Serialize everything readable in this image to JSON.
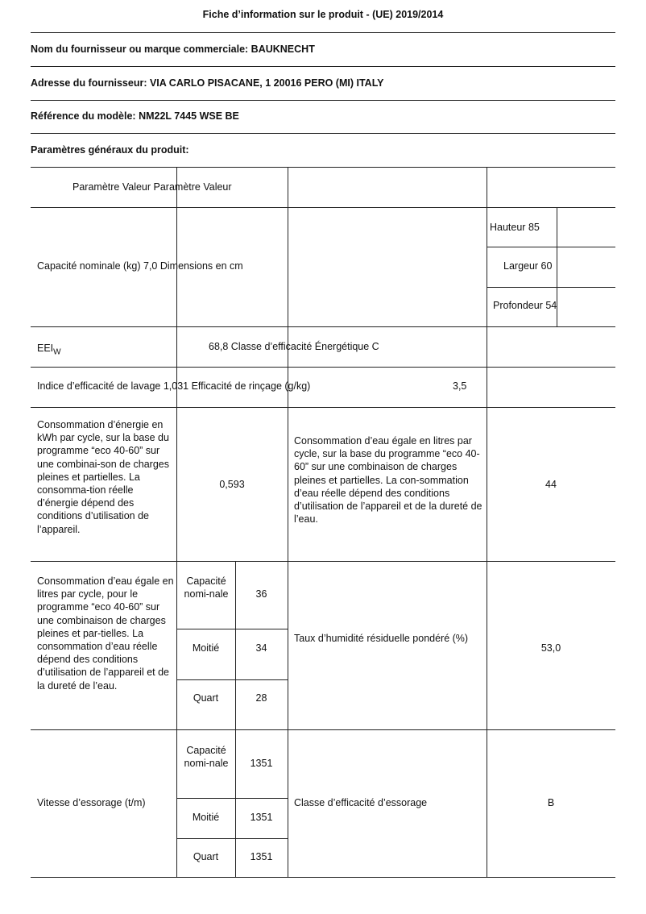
{
  "title": "Fiche d’information sur le produit - (UE) 2019/2014",
  "supplier": "Nom du fournisseur ou marque commerciale: BAUKNECHT",
  "address": "Adresse du fournisseur: VIA CARLO PISACANE, 1 20016 PERO (MI) ITALY",
  "model": "Référence du modèle: NM22L 7445 WSE BE",
  "general": "Paramètres généraux du produit:",
  "table": {
    "header": "Paramètre Valeur Paramètre Valeur",
    "capacity": "Capacité nominale (kg) 7,0 Dimensions en cm",
    "height": "Hauteur 85",
    "width": "Largeur 60",
    "depth": "Profondeur 54",
    "eei_label": "EEI",
    "eei_sub": "W",
    "eei_value": "68,8 Classe d’efficacité Énergétique C",
    "wash": "Indice d’efficacité de lavage 1,031 Efficacité de rinçage (g/kg)",
    "rinse_value": "3,5",
    "energy_label": "Consommation d’énergie en kWh par cycle, sur la base du programme “eco 40-60” sur une combinai-son de charges pleines et partielles. La consomma-tion réelle d’énergie dépend des conditions d’utilisation de l’appareil.",
    "energy_value": "0,593",
    "water_label": "Consommation d’eau égale en litres par cycle, sur la base du programme “eco 40-60” sur une combinaison de charges pleines et partielles. La con-sommation d’eau réelle dépend des conditions d’utilisation de l’appareil et de la dureté de l’eau.",
    "water_value": "44",
    "water2_label": "Consommation d’eau égale en litres par cycle, pour le programme “eco 40-60” sur une combinaison de charges pleines et par-tielles. La consommation d’eau réelle dépend des conditions d’utilisation de l’appareil et de la dureté de l’eau.",
    "load_full": "Capacité nomi-nale",
    "load_half": "Moitié",
    "load_quarter": "Quart",
    "water2_full": "36",
    "water2_half": "34",
    "water2_quarter": "28",
    "humidity_label": "Taux d’humidité résiduelle pondéré (%)",
    "humidity_value": "53,0",
    "spin_label": "Vitesse d’essorage (t/m)",
    "spin_full": "1351",
    "spin_half": "1351",
    "spin_quarter": "1351",
    "spin_class_label": "Classe d’efficacité d’essorage",
    "spin_class_value": "B"
  }
}
